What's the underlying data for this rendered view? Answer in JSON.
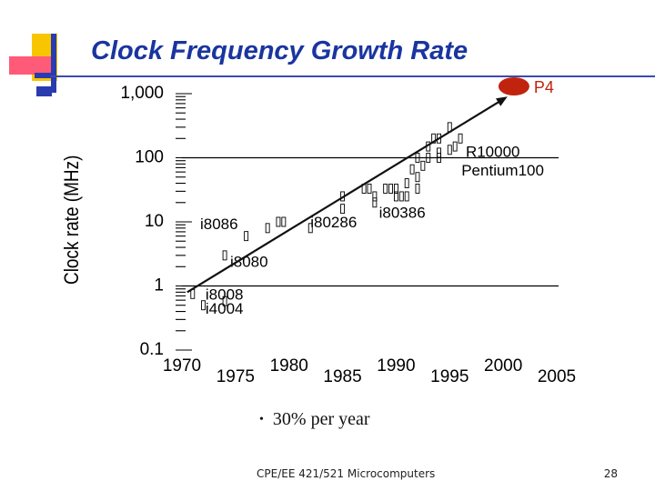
{
  "slide": {
    "title": "Clock Frequency Growth Rate",
    "bullet": "30% per year",
    "footer": "CPE/EE 421/521 Microcomputers",
    "page_number": "28"
  },
  "colors": {
    "title": "#1a35a0",
    "p4_marker": "#c0240e",
    "p4_label": "#c0240e",
    "logo_yellow": "#f7c600",
    "logo_blue": "#2a3bb0",
    "logo_pink": "#ff5a78"
  },
  "chart_data": {
    "type": "scatter",
    "title": "",
    "xlabel": "",
    "ylabel": "Clock rate (MHz)",
    "x_scale": "linear",
    "y_scale": "log",
    "xlim": [
      1970,
      2005
    ],
    "ylim": [
      0.1,
      1000
    ],
    "x_ticks_upper": [
      "1970",
      "1980",
      "1990",
      "2000"
    ],
    "x_ticks_lower": [
      "1975",
      "1985",
      "1995",
      "2005"
    ],
    "y_ticks": [
      {
        "value": 1000,
        "label": "1,000"
      },
      {
        "value": 100,
        "label": "100"
      },
      {
        "value": 10,
        "label": "10"
      },
      {
        "value": 1,
        "label": "1"
      },
      {
        "value": 0.1,
        "label": "0.1"
      }
    ],
    "reference_lines_y": [
      1,
      100
    ],
    "points": [
      {
        "x": 1971,
        "y": 0.75
      },
      {
        "x": 1972,
        "y": 0.5
      },
      {
        "x": 1974,
        "y": 0.58
      },
      {
        "x": 1974,
        "y": 3
      },
      {
        "x": 1976,
        "y": 6
      },
      {
        "x": 1978,
        "y": 8
      },
      {
        "x": 1979,
        "y": 10
      },
      {
        "x": 1979.5,
        "y": 10
      },
      {
        "x": 1982,
        "y": 8
      },
      {
        "x": 1985,
        "y": 25
      },
      {
        "x": 1985,
        "y": 16
      },
      {
        "x": 1987,
        "y": 33
      },
      {
        "x": 1987.5,
        "y": 33
      },
      {
        "x": 1988,
        "y": 25
      },
      {
        "x": 1988,
        "y": 20
      },
      {
        "x": 1989,
        "y": 33
      },
      {
        "x": 1989.5,
        "y": 33
      },
      {
        "x": 1990,
        "y": 33
      },
      {
        "x": 1990,
        "y": 25
      },
      {
        "x": 1990.5,
        "y": 25
      },
      {
        "x": 1991,
        "y": 40
      },
      {
        "x": 1991,
        "y": 25
      },
      {
        "x": 1991.5,
        "y": 66
      },
      {
        "x": 1992,
        "y": 50
      },
      {
        "x": 1992,
        "y": 100
      },
      {
        "x": 1992,
        "y": 33
      },
      {
        "x": 1992.5,
        "y": 75
      },
      {
        "x": 1993,
        "y": 100
      },
      {
        "x": 1993,
        "y": 150
      },
      {
        "x": 1993.5,
        "y": 200
      },
      {
        "x": 1994,
        "y": 100
      },
      {
        "x": 1994,
        "y": 200
      },
      {
        "x": 1994,
        "y": 120
      },
      {
        "x": 1995,
        "y": 300
      },
      {
        "x": 1995,
        "y": 133
      },
      {
        "x": 1995.5,
        "y": 150
      },
      {
        "x": 1996,
        "y": 200
      }
    ],
    "labels": [
      {
        "text": "i4004",
        "x": 1972.2,
        "y": 0.45
      },
      {
        "text": "i8008",
        "x": 1972.2,
        "y": 0.75
      },
      {
        "text": "i8080",
        "x": 1974.5,
        "y": 2.4
      },
      {
        "text": "i8086",
        "x": 1971.7,
        "y": 9.3
      },
      {
        "text": "i80286",
        "x": 1982,
        "y": 10
      },
      {
        "text": "i80386",
        "x": 1988.4,
        "y": 14
      },
      {
        "text": "Pentium100",
        "x": 1996.1,
        "y": 64
      },
      {
        "text": "R10000",
        "x": 1996.5,
        "y": 126
      }
    ],
    "trend_line": {
      "label": "30% per year",
      "from": [
        1970.5,
        0.8
      ],
      "to": [
        2000.4,
        900
      ]
    },
    "highlight": {
      "label": "P4",
      "x": 2001,
      "y": 1000
    }
  }
}
